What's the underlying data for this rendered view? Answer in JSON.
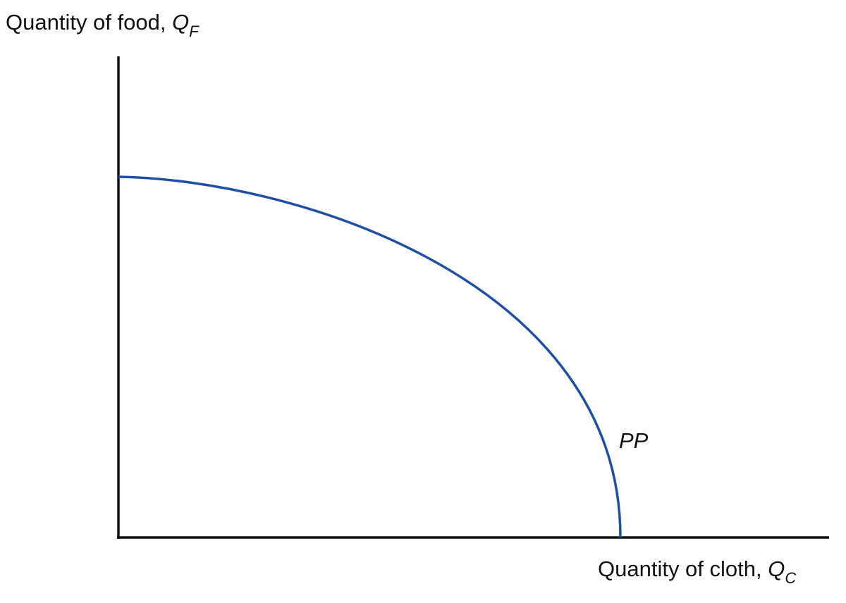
{
  "diagram": {
    "y_axis_label": {
      "text": "Quantity of food, ",
      "symbol": "Q",
      "subscript": "F"
    },
    "x_axis_label": {
      "text": "Quantity of cloth, ",
      "symbol": "Q",
      "subscript": "C"
    },
    "curve": {
      "label": "PP",
      "color": "#1f4fa3"
    },
    "axis_color": "#111111"
  }
}
